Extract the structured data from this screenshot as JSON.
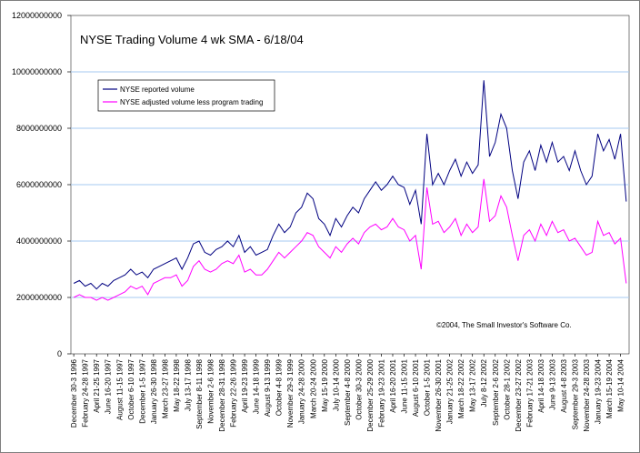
{
  "chart_data": {
    "type": "line",
    "title": "NYSE Trading Volume 4 wk SMA - 6/18/04",
    "annotation": "©2004, The Small Investor's Software Co.",
    "categories": [
      "December 30-3 1996",
      null,
      "February 24-28 1997",
      null,
      "April 21-25 1997",
      null,
      "June 16-20 1997",
      null,
      "August 11-15 1997",
      null,
      "October 6-10 1997",
      null,
      "December 1-5 1997",
      null,
      "January 26-30 1998",
      null,
      "March 23-27 1998",
      null,
      "May 18-22 1998",
      null,
      "July 13-17 1998",
      null,
      "September 8-11 1998",
      null,
      "November 2-6 1998",
      null,
      "December 28-31 1998",
      null,
      "February 22-26 1999",
      null,
      "April 19-23 1999",
      null,
      "June 14-18 1999",
      null,
      "August 9-13 1999",
      null,
      "October 4-8 1999",
      null,
      "November 29-3 1999",
      null,
      "January 24-28 2000",
      null,
      "March 20-24 2000",
      null,
      "May 15-19 2000",
      null,
      "July 10-14 2000",
      null,
      "September 4-8 2000",
      null,
      "October 30-3 2000",
      null,
      "December 25-29 2000",
      null,
      "February 19-23 2001",
      null,
      "April 16-20 2001",
      null,
      "June 11-15 2001",
      null,
      "August 6-10 2001",
      null,
      "October 1-5 2001",
      null,
      "November 26-30 2001",
      null,
      "January 21-25 2002",
      null,
      "March 18-22 2002",
      null,
      "May 13-17 2002",
      null,
      "July 8-12 2002",
      null,
      "September 2-6 2002",
      null,
      "October 28-1 2002",
      null,
      "December 23-27 2002",
      null,
      "February 17-21 2003",
      null,
      "April 14-18 2003",
      null,
      "June 9-13 2003",
      null,
      "August 4-8 2003",
      null,
      "September 29-3 2003",
      null,
      "November 24-28 2003",
      null,
      "January 19-23 2004",
      null,
      "March 15-19 2004",
      null,
      "May 10-14 2004",
      null
    ],
    "series": [
      {
        "name": "NYSE reported volume",
        "color": "#000080",
        "values": [
          2500000000.0,
          2600000000.0,
          2400000000.0,
          2500000000.0,
          2300000000.0,
          2500000000.0,
          2400000000.0,
          2600000000.0,
          2700000000.0,
          2800000000.0,
          3000000000.0,
          2800000000.0,
          2900000000.0,
          2700000000.0,
          3000000000.0,
          3100000000.0,
          3200000000.0,
          3300000000.0,
          3400000000.0,
          3000000000.0,
          3400000000.0,
          3900000000.0,
          4000000000.0,
          3600000000.0,
          3500000000.0,
          3700000000.0,
          3800000000.0,
          4000000000.0,
          3800000000.0,
          4200000000.0,
          3600000000.0,
          3800000000.0,
          3500000000.0,
          3600000000.0,
          3700000000.0,
          4200000000.0,
          4600000000.0,
          4300000000.0,
          4500000000.0,
          5000000000.0,
          5200000000.0,
          5700000000.0,
          5500000000.0,
          4800000000.0,
          4600000000.0,
          4200000000.0,
          4800000000.0,
          4500000000.0,
          4900000000.0,
          5200000000.0,
          5000000000.0,
          5500000000.0,
          5800000000.0,
          6100000000.0,
          5800000000.0,
          6000000000.0,
          6300000000.0,
          6000000000.0,
          5900000000.0,
          5300000000.0,
          5800000000.0,
          4600000000.0,
          7800000000.0,
          6000000000.0,
          6400000000.0,
          6000000000.0,
          6500000000.0,
          6900000000.0,
          6300000000.0,
          6800000000.0,
          6400000000.0,
          6700000000.0,
          9700000000.0,
          7000000000.0,
          7500000000.0,
          8500000000.0,
          8000000000.0,
          6500000000.0,
          5500000000.0,
          6800000000.0,
          7200000000.0,
          6500000000.0,
          7400000000.0,
          6800000000.0,
          7500000000.0,
          6800000000.0,
          7000000000.0,
          6500000000.0,
          7200000000.0,
          6500000000.0,
          6000000000.0,
          6300000000.0,
          7800000000.0,
          7200000000.0,
          7600000000.0,
          6900000000.0,
          7800000000.0,
          5400000000.0
        ]
      },
      {
        "name": "NYSE adjusted volume less program trading",
        "color": "#ff00ff",
        "values": [
          2000000000.0,
          2100000000.0,
          2000000000.0,
          2000000000.0,
          1900000000.0,
          2000000000.0,
          1900000000.0,
          2000000000.0,
          2100000000.0,
          2200000000.0,
          2400000000.0,
          2300000000.0,
          2400000000.0,
          2100000000.0,
          2500000000.0,
          2600000000.0,
          2700000000.0,
          2700000000.0,
          2800000000.0,
          2400000000.0,
          2600000000.0,
          3100000000.0,
          3300000000.0,
          3000000000.0,
          2900000000.0,
          3000000000.0,
          3200000000.0,
          3300000000.0,
          3200000000.0,
          3500000000.0,
          2900000000.0,
          3000000000.0,
          2800000000.0,
          2800000000.0,
          3000000000.0,
          3300000000.0,
          3600000000.0,
          3400000000.0,
          3600000000.0,
          3800000000.0,
          4000000000.0,
          4300000000.0,
          4200000000.0,
          3800000000.0,
          3600000000.0,
          3400000000.0,
          3800000000.0,
          3600000000.0,
          3900000000.0,
          4100000000.0,
          3900000000.0,
          4300000000.0,
          4500000000.0,
          4600000000.0,
          4400000000.0,
          4500000000.0,
          4800000000.0,
          4500000000.0,
          4400000000.0,
          4000000000.0,
          4200000000.0,
          3000000000.0,
          5900000000.0,
          4600000000.0,
          4700000000.0,
          4300000000.0,
          4500000000.0,
          4800000000.0,
          4200000000.0,
          4600000000.0,
          4300000000.0,
          4500000000.0,
          6200000000.0,
          4700000000.0,
          4900000000.0,
          5600000000.0,
          5200000000.0,
          4200000000.0,
          3300000000.0,
          4200000000.0,
          4400000000.0,
          4000000000.0,
          4600000000.0,
          4200000000.0,
          4700000000.0,
          4300000000.0,
          4400000000.0,
          4000000000.0,
          4100000000.0,
          3800000000.0,
          3500000000.0,
          3600000000.0,
          4700000000.0,
          4200000000.0,
          4300000000.0,
          3900000000.0,
          4100000000.0,
          2500000000.0
        ]
      }
    ],
    "ylim": [
      0,
      12000000000
    ],
    "yticks": [
      0,
      2000000000,
      4000000000,
      6000000000,
      8000000000,
      10000000000,
      12000000000
    ],
    "grid": true
  }
}
